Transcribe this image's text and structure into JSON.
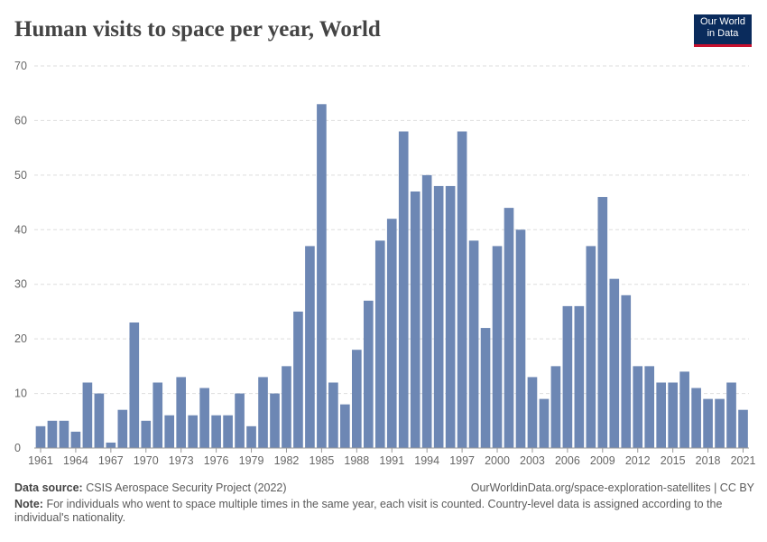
{
  "chart_data": {
    "type": "bar",
    "title": "Human visits to space per year, World",
    "logo": [
      "Our World",
      "in Data"
    ],
    "x": [
      1961,
      1962,
      1963,
      1964,
      1965,
      1966,
      1967,
      1968,
      1969,
      1970,
      1971,
      1972,
      1973,
      1974,
      1975,
      1976,
      1977,
      1978,
      1979,
      1980,
      1981,
      1982,
      1983,
      1984,
      1985,
      1986,
      1987,
      1988,
      1989,
      1990,
      1991,
      1992,
      1993,
      1994,
      1995,
      1996,
      1997,
      1998,
      1999,
      2000,
      2001,
      2002,
      2003,
      2004,
      2005,
      2006,
      2007,
      2008,
      2009,
      2010,
      2011,
      2012,
      2013,
      2014,
      2015,
      2016,
      2017,
      2018,
      2019,
      2020,
      2021
    ],
    "values": [
      4,
      5,
      5,
      3,
      12,
      10,
      1,
      7,
      23,
      5,
      12,
      6,
      13,
      6,
      11,
      6,
      6,
      10,
      4,
      13,
      10,
      15,
      25,
      37,
      63,
      12,
      8,
      18,
      27,
      38,
      42,
      58,
      47,
      50,
      48,
      48,
      58,
      38,
      22,
      37,
      44,
      40,
      13,
      9,
      15,
      26,
      26,
      37,
      46,
      31,
      28,
      15,
      15,
      12,
      12,
      14,
      11,
      9,
      9,
      12,
      7
    ],
    "color": "#6d87b4",
    "xlim": [
      1960.5,
      2021.5
    ],
    "xticks": [
      1961,
      1964,
      1967,
      1970,
      1973,
      1976,
      1979,
      1982,
      1985,
      1988,
      1991,
      1994,
      1997,
      2000,
      2003,
      2006,
      2009,
      2012,
      2015,
      2018,
      2021
    ],
    "ylim": [
      0,
      70
    ],
    "yticks": [
      0,
      10,
      20,
      30,
      40,
      50,
      60,
      70
    ],
    "grid": true,
    "source_label": "Data source:",
    "source": "CSIS Aerospace Security Project (2022)",
    "url": "OurWorldinData.org/space-exploration-satellites | CC BY",
    "note_label": "Note:",
    "note": "For individuals who went to space multiple times in the same year, each visit is counted. Country-level data is assigned according to the individual's nationality."
  }
}
